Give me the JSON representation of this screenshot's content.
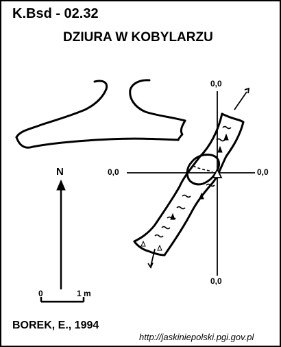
{
  "header": {
    "cave_id": "K.Bsd - 02.32",
    "cave_name": "DZIURA W KOBYLARZU"
  },
  "coordinates": {
    "top": "0,0",
    "left": "0,0",
    "right": "0,0",
    "bottom": "0,0"
  },
  "north_arrow": {
    "label": "N"
  },
  "scale_bar": {
    "start_label": "0",
    "end_label": "1 m"
  },
  "footer": {
    "author": "BOREK, E., 1994",
    "url": "http://jaskiniepolski.pgi.gov.pl"
  }
}
